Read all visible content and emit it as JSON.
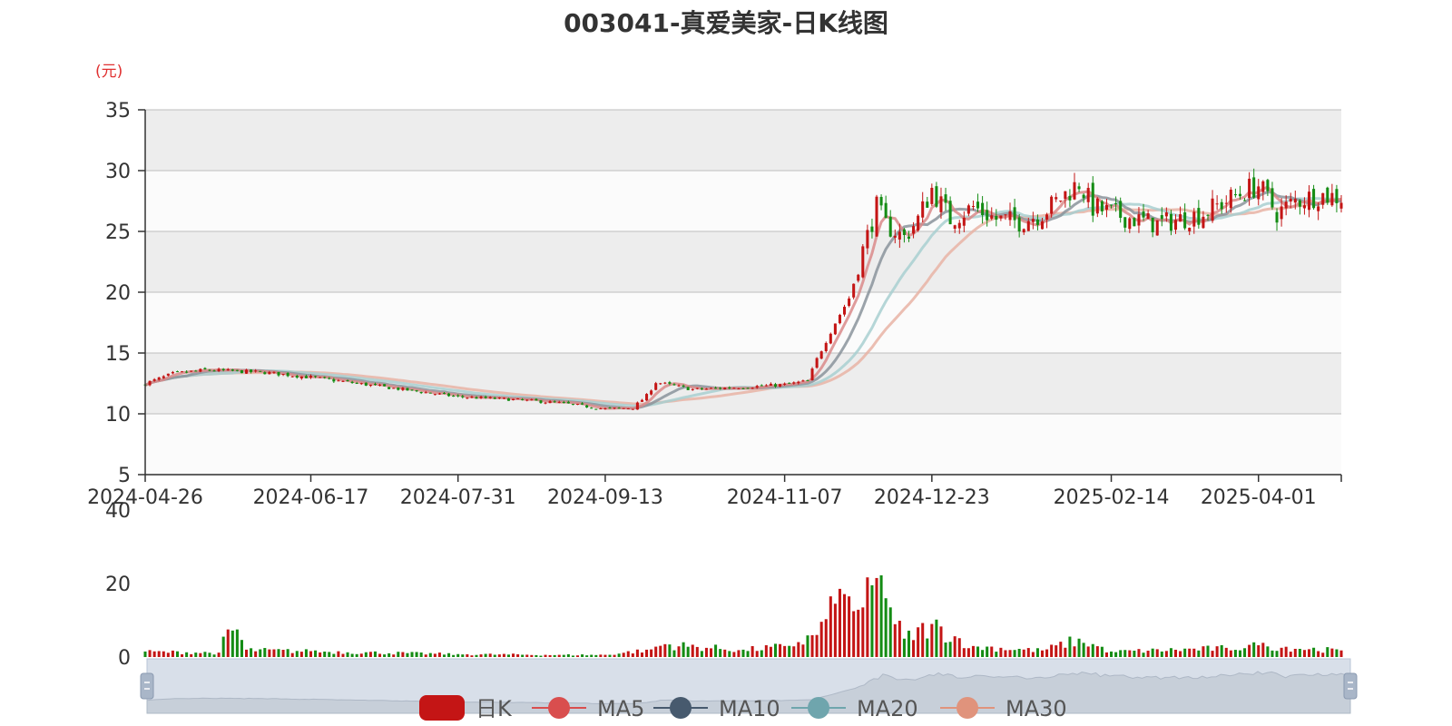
{
  "title": "003041-真爱美家-日K线图",
  "colors": {
    "up": "#c41515",
    "down": "#148c14",
    "ma5": "#d98989",
    "ma10": "#8a939b",
    "ma20": "#a8cfd0",
    "ma30": "#e8b3a4",
    "grid": "#c9c9c9",
    "band": "#ededed",
    "unit": "#e03030"
  },
  "chart_data": [
    {
      "type": "candlestick",
      "title": "003041-真爱美家-日K线图",
      "ylabel": "(元)",
      "ylim": [
        5,
        35
      ],
      "yticks": [
        5,
        10,
        15,
        20,
        25,
        30,
        35
      ],
      "xticks": [
        "2024-04-26",
        "2024-06-17",
        "2024-07-31",
        "2024-09-13",
        "2024-11-07",
        "2024-12-23",
        "2025-02-14",
        "2025-04-01"
      ],
      "x_range": [
        "2024-04-26",
        "2025-04-25"
      ],
      "price_anchors": [
        [
          "2024-04-26",
          12.5
        ],
        [
          "2024-05-06",
          13.3
        ],
        [
          "2024-05-15",
          13.6
        ],
        [
          "2024-05-24",
          13.5
        ],
        [
          "2024-06-03",
          13.4
        ],
        [
          "2024-06-17",
          13.0
        ],
        [
          "2024-07-01",
          12.5
        ],
        [
          "2024-07-15",
          12.0
        ],
        [
          "2024-07-31",
          11.4
        ],
        [
          "2024-08-15",
          11.2
        ],
        [
          "2024-08-30",
          10.9
        ],
        [
          "2024-09-13",
          10.4
        ],
        [
          "2024-09-23",
          10.5
        ],
        [
          "2024-09-26",
          11.5
        ],
        [
          "2024-09-30",
          12.6
        ],
        [
          "2024-10-10",
          12.0
        ],
        [
          "2024-10-25",
          12.2
        ],
        [
          "2024-11-07",
          12.4
        ],
        [
          "2024-11-14",
          12.7
        ],
        [
          "2024-11-18",
          14.5
        ],
        [
          "2024-11-22",
          17.5
        ],
        [
          "2024-11-27",
          19.5
        ],
        [
          "2024-12-02",
          23.5
        ],
        [
          "2024-12-05",
          27.0
        ],
        [
          "2024-12-09",
          25.5
        ],
        [
          "2024-12-13",
          24.5
        ],
        [
          "2024-12-18",
          26.0
        ],
        [
          "2024-12-23",
          28.5
        ],
        [
          "2024-12-27",
          26.0
        ],
        [
          "2025-01-03",
          27.0
        ],
        [
          "2025-01-10",
          26.0
        ],
        [
          "2025-01-17",
          25.8
        ],
        [
          "2025-01-24",
          26.5
        ],
        [
          "2025-02-05",
          29.0
        ],
        [
          "2025-02-10",
          27.0
        ],
        [
          "2025-02-14",
          26.5
        ],
        [
          "2025-02-21",
          26.0
        ],
        [
          "2025-02-28",
          25.6
        ],
        [
          "2025-03-07",
          26.0
        ],
        [
          "2025-03-14",
          26.5
        ],
        [
          "2025-03-21",
          27.5
        ],
        [
          "2025-03-28",
          28.5
        ],
        [
          "2025-04-01",
          28.8
        ],
        [
          "2025-04-07",
          26.5
        ],
        [
          "2025-04-11",
          27.5
        ],
        [
          "2025-04-18",
          28.0
        ],
        [
          "2025-04-25",
          27.8
        ]
      ],
      "series": [
        {
          "name": "日K",
          "type": "candlestick"
        },
        {
          "name": "MA5",
          "type": "line",
          "window": 5
        },
        {
          "name": "MA10",
          "type": "line",
          "window": 10
        },
        {
          "name": "MA20",
          "type": "line",
          "window": 20
        },
        {
          "name": "MA30",
          "type": "line",
          "window": 30
        }
      ],
      "legend_position": "bottom-center",
      "grid": true
    },
    {
      "type": "bar",
      "ylim": [
        0,
        40
      ],
      "yticks": [
        0,
        20,
        40
      ],
      "volume_anchors": [
        [
          "2024-04-26",
          1.5
        ],
        [
          "2024-05-20",
          1.2
        ],
        [
          "2024-05-22",
          7.5
        ],
        [
          "2024-05-24",
          7.5
        ],
        [
          "2024-05-28",
          2.0
        ],
        [
          "2024-06-17",
          1.6
        ],
        [
          "2024-07-31",
          0.8
        ],
        [
          "2024-08-30",
          0.6
        ],
        [
          "2024-09-13",
          0.6
        ],
        [
          "2024-09-26",
          2.0
        ],
        [
          "2024-10-02",
          3.5
        ],
        [
          "2024-10-25",
          2.0
        ],
        [
          "2024-11-07",
          3.0
        ],
        [
          "2024-11-18",
          6.0
        ],
        [
          "2024-11-22",
          14.5
        ],
        [
          "2024-11-27",
          16.5
        ],
        [
          "2024-12-02",
          13.5
        ],
        [
          "2024-12-05",
          21.5
        ],
        [
          "2024-12-09",
          16.0
        ],
        [
          "2024-12-13",
          5.0
        ],
        [
          "2024-12-23",
          9.0
        ],
        [
          "2025-01-03",
          3.0
        ],
        [
          "2025-01-24",
          1.8
        ],
        [
          "2025-02-05",
          5.0
        ],
        [
          "2025-02-14",
          1.5
        ],
        [
          "2025-03-21",
          2.5
        ],
        [
          "2025-04-01",
          3.2
        ],
        [
          "2025-04-25",
          1.8
        ]
      ]
    }
  ],
  "legend": {
    "items": [
      {
        "label": "日K",
        "icon": "candle-legend-icon"
      },
      {
        "label": "MA5",
        "icon": "line-circle-icon"
      },
      {
        "label": "MA10",
        "icon": "line-circle-icon"
      },
      {
        "label": "MA20",
        "icon": "line-circle-icon"
      },
      {
        "label": "MA30",
        "icon": "line-circle-icon"
      }
    ]
  },
  "datazoom": {
    "handle_icon": "drag-handle-icon"
  }
}
